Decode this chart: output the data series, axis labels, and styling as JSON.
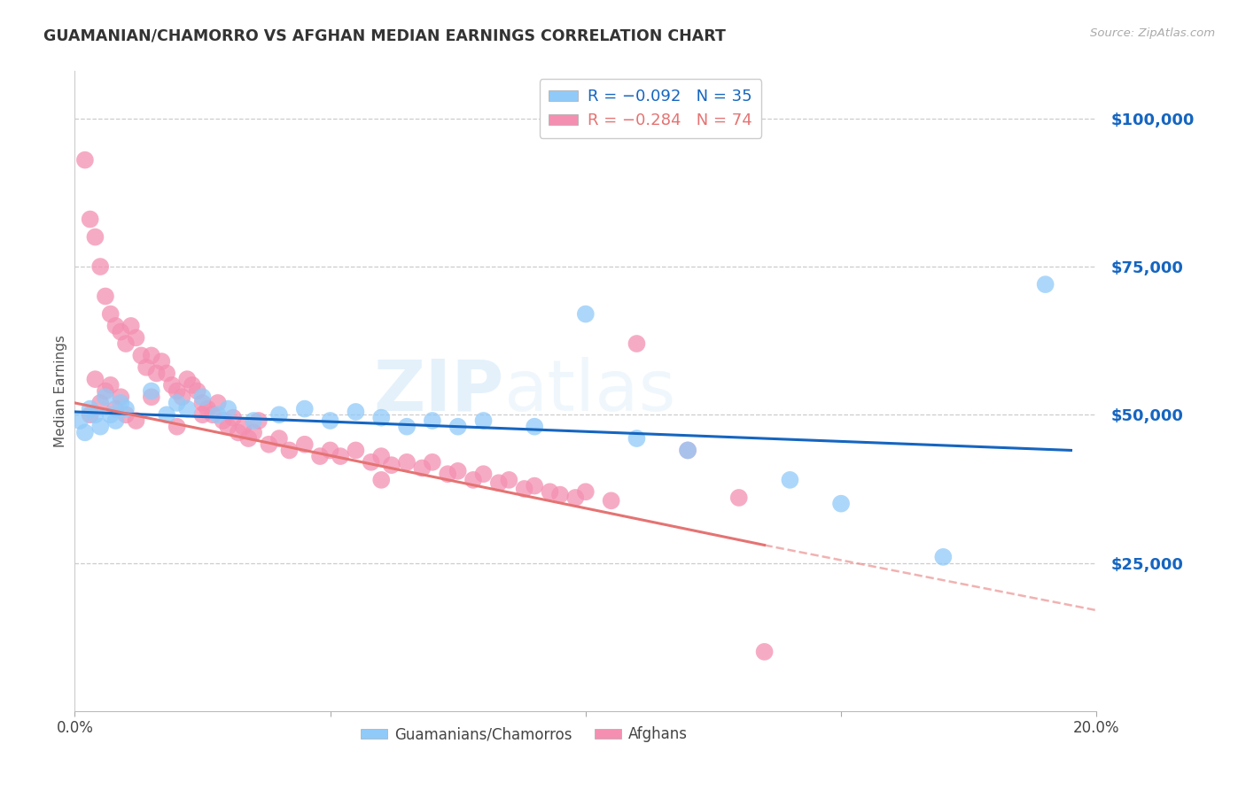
{
  "title": "GUAMANIAN/CHAMORRO VS AFGHAN MEDIAN EARNINGS CORRELATION CHART",
  "source": "Source: ZipAtlas.com",
  "ylabel": "Median Earnings",
  "ytick_labels": [
    "$25,000",
    "$50,000",
    "$75,000",
    "$100,000"
  ],
  "ytick_values": [
    25000,
    50000,
    75000,
    100000
  ],
  "ymin": 0,
  "ymax": 108000,
  "xmin": 0.0,
  "xmax": 0.2,
  "watermark_part1": "ZIP",
  "watermark_part2": "atlas",
  "blue_scatter": [
    [
      0.001,
      49000
    ],
    [
      0.002,
      47000
    ],
    [
      0.003,
      51000
    ],
    [
      0.004,
      50000
    ],
    [
      0.005,
      48000
    ],
    [
      0.006,
      53000
    ],
    [
      0.007,
      50000
    ],
    [
      0.008,
      49000
    ],
    [
      0.009,
      52000
    ],
    [
      0.01,
      51000
    ],
    [
      0.015,
      54000
    ],
    [
      0.018,
      50000
    ],
    [
      0.02,
      52000
    ],
    [
      0.022,
      51000
    ],
    [
      0.025,
      53000
    ],
    [
      0.028,
      50000
    ],
    [
      0.03,
      51000
    ],
    [
      0.035,
      49000
    ],
    [
      0.04,
      50000
    ],
    [
      0.045,
      51000
    ],
    [
      0.05,
      49000
    ],
    [
      0.055,
      50500
    ],
    [
      0.06,
      49500
    ],
    [
      0.065,
      48000
    ],
    [
      0.07,
      49000
    ],
    [
      0.075,
      48000
    ],
    [
      0.08,
      49000
    ],
    [
      0.09,
      48000
    ],
    [
      0.1,
      67000
    ],
    [
      0.11,
      46000
    ],
    [
      0.12,
      44000
    ],
    [
      0.14,
      39000
    ],
    [
      0.15,
      35000
    ],
    [
      0.17,
      26000
    ],
    [
      0.19,
      72000
    ]
  ],
  "pink_scatter": [
    [
      0.002,
      93000
    ],
    [
      0.003,
      83000
    ],
    [
      0.004,
      80000
    ],
    [
      0.005,
      75000
    ],
    [
      0.006,
      70000
    ],
    [
      0.007,
      67000
    ],
    [
      0.008,
      65000
    ],
    [
      0.009,
      64000
    ],
    [
      0.01,
      62000
    ],
    [
      0.011,
      65000
    ],
    [
      0.012,
      63000
    ],
    [
      0.013,
      60000
    ],
    [
      0.014,
      58000
    ],
    [
      0.015,
      60000
    ],
    [
      0.016,
      57000
    ],
    [
      0.017,
      59000
    ],
    [
      0.018,
      57000
    ],
    [
      0.019,
      55000
    ],
    [
      0.02,
      54000
    ],
    [
      0.021,
      53000
    ],
    [
      0.022,
      56000
    ],
    [
      0.023,
      55000
    ],
    [
      0.024,
      54000
    ],
    [
      0.025,
      52000
    ],
    [
      0.026,
      51000
    ],
    [
      0.027,
      50000
    ],
    [
      0.028,
      52000
    ],
    [
      0.029,
      49000
    ],
    [
      0.03,
      48000
    ],
    [
      0.031,
      49500
    ],
    [
      0.032,
      47000
    ],
    [
      0.033,
      48000
    ],
    [
      0.034,
      46000
    ],
    [
      0.035,
      47000
    ],
    [
      0.036,
      49000
    ],
    [
      0.038,
      45000
    ],
    [
      0.04,
      46000
    ],
    [
      0.042,
      44000
    ],
    [
      0.045,
      45000
    ],
    [
      0.048,
      43000
    ],
    [
      0.05,
      44000
    ],
    [
      0.052,
      43000
    ],
    [
      0.055,
      44000
    ],
    [
      0.058,
      42000
    ],
    [
      0.06,
      43000
    ],
    [
      0.062,
      41500
    ],
    [
      0.065,
      42000
    ],
    [
      0.068,
      41000
    ],
    [
      0.07,
      42000
    ],
    [
      0.073,
      40000
    ],
    [
      0.075,
      40500
    ],
    [
      0.078,
      39000
    ],
    [
      0.08,
      40000
    ],
    [
      0.083,
      38500
    ],
    [
      0.085,
      39000
    ],
    [
      0.088,
      37500
    ],
    [
      0.09,
      38000
    ],
    [
      0.093,
      37000
    ],
    [
      0.095,
      36500
    ],
    [
      0.098,
      36000
    ],
    [
      0.1,
      37000
    ],
    [
      0.105,
      35500
    ],
    [
      0.11,
      62000
    ],
    [
      0.12,
      44000
    ],
    [
      0.13,
      36000
    ],
    [
      0.003,
      50000
    ],
    [
      0.005,
      52000
    ],
    [
      0.007,
      55000
    ],
    [
      0.009,
      53000
    ],
    [
      0.006,
      54000
    ],
    [
      0.004,
      56000
    ],
    [
      0.008,
      51000
    ],
    [
      0.015,
      53000
    ],
    [
      0.025,
      50000
    ],
    [
      0.01,
      50000
    ],
    [
      0.012,
      49000
    ],
    [
      0.02,
      48000
    ],
    [
      0.135,
      10000
    ],
    [
      0.06,
      39000
    ]
  ],
  "blue_line_color": "#1565c0",
  "pink_line_color": "#e57373",
  "blue_scatter_color": "#90caf9",
  "pink_scatter_color": "#f48fb1",
  "title_color": "#333333",
  "source_color": "#aaaaaa",
  "ytick_color": "#1565c0",
  "xtick_color": "#444444",
  "grid_color": "#cccccc",
  "bg_color": "#ffffff",
  "legend_box_color_blue": "#90caf9",
  "legend_box_color_pink": "#f48fb1",
  "blue_line_x_end": 0.195,
  "pink_line_solid_x_end": 0.135,
  "pink_line_dash_x_end": 0.2
}
